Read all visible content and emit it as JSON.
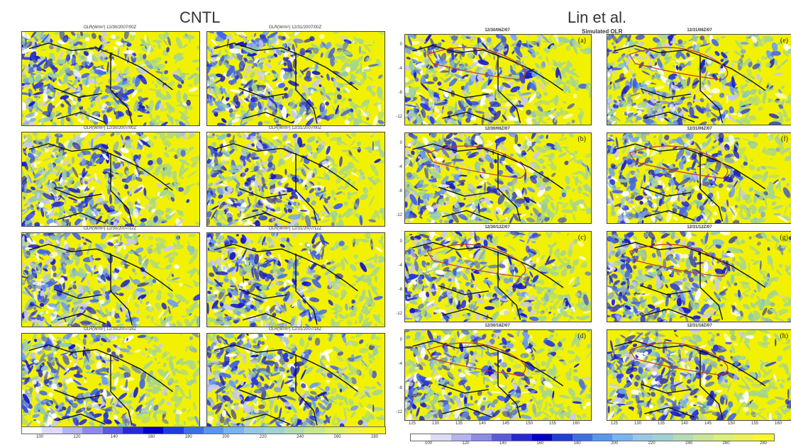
{
  "titles": {
    "left": "CNTL",
    "right": "Lin et al.",
    "right_sub": "Simulated OLR"
  },
  "left_panels": [
    {
      "title": "OLR(W/m²) 12/30/2007/00Z"
    },
    {
      "title": "OLR(W/m²) 12/31/2007/00Z"
    },
    {
      "title": "OLR(W/m²) 12/30/2007/00Z"
    },
    {
      "title": "OLR(W/m²) 12/31/2007/00Z"
    },
    {
      "title": "OLR(W/m²) 12/30/2007/12Z"
    },
    {
      "title": "OLR(W/m²) 12/31/2007/12Z"
    },
    {
      "title": "OLR(W/m²) 12/30/2007/18Z"
    },
    {
      "title": "OLR(W/m²) 12/31/2007/18Z"
    }
  ],
  "right_panels": [
    {
      "title": "12/30/06Z/07",
      "tag": "(a)"
    },
    {
      "title": "12/31/06Z/07",
      "tag": "(e)"
    },
    {
      "title": "12/30/06Z/07",
      "tag": "(b)"
    },
    {
      "title": "12/31/06Z/07",
      "tag": "(f)"
    },
    {
      "title": "12/30/12Z/07",
      "tag": "(c)"
    },
    {
      "title": "12/31/12Z/07",
      "tag": "(g)"
    },
    {
      "title": "12/30/18Z/07",
      "tag": "(d)"
    },
    {
      "title": "12/31/18Z/07",
      "tag": "(h)"
    }
  ],
  "right_yticks": [
    "0",
    "-4",
    "-8",
    "-12"
  ],
  "right_xticks": [
    "125",
    "130",
    "135",
    "140",
    "145",
    "150",
    "155",
    "160"
  ],
  "colorbar": {
    "labels": [
      "100",
      "120",
      "140",
      "160",
      "180",
      "200",
      "220",
      "240",
      "260",
      "280"
    ],
    "colors": [
      "#ffffff",
      "#dcdcf8",
      "#b4b4f0",
      "#8c8ce8",
      "#5a5ae0",
      "#2828d8",
      "#0000c8",
      "#1e3cdc",
      "#3c6ee6",
      "#5a96f0",
      "#78b4f0",
      "#96c8e6",
      "#a0d2d2",
      "#b4dcb4",
      "#c8e696",
      "#dcf078",
      "#f0f050",
      "#f8f828"
    ]
  }
}
